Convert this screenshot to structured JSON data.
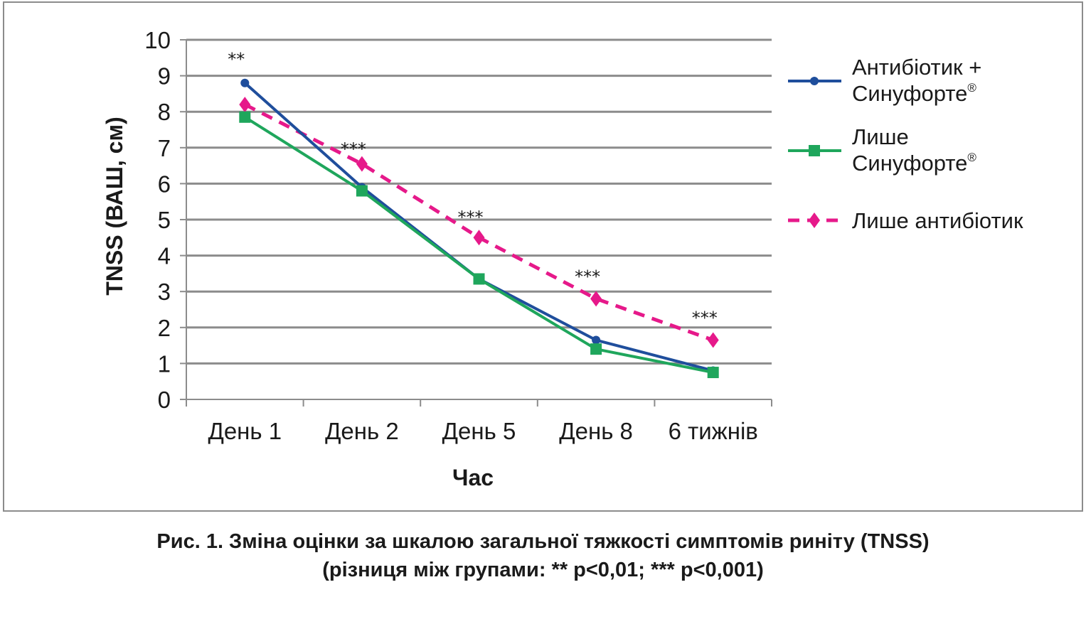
{
  "chart_data": {
    "type": "line",
    "title": "",
    "xlabel": "Час",
    "ylabel": "TNSS (ВАШ, см)",
    "ylim": [
      0,
      10
    ],
    "yticks": [
      "0",
      "1",
      "2",
      "3",
      "4",
      "5",
      "6",
      "7",
      "8",
      "9",
      "10"
    ],
    "categories": [
      "День 1",
      "День 2",
      "День 5",
      "День 8",
      "6 тижнів"
    ],
    "grid": true,
    "legend_position": "right",
    "series": [
      {
        "name": "Антибіотик + Синуфорте®",
        "legend_lines": [
          "Антибіотик +",
          "Синуфорте"
        ],
        "legend_sup": [
          "",
          "®"
        ],
        "color": "#1f4e9c",
        "marker": "circle",
        "dash": "solid",
        "values": [
          8.8,
          5.9,
          3.35,
          1.65,
          0.8
        ]
      },
      {
        "name": "Лише Синуфорте®",
        "legend_lines": [
          "Лише",
          "Синуфорте"
        ],
        "legend_sup": [
          "",
          "®"
        ],
        "color": "#1fa65c",
        "marker": "square",
        "dash": "solid",
        "values": [
          7.85,
          5.8,
          3.35,
          1.4,
          0.75
        ]
      },
      {
        "name": "Лише антибіотик",
        "legend_lines": [
          "Лише антибіотик"
        ],
        "legend_sup": [
          ""
        ],
        "color": "#e6198a",
        "marker": "diamond",
        "dash": "dashed",
        "values": [
          8.2,
          6.55,
          4.5,
          2.8,
          1.65
        ]
      }
    ],
    "annotations": [
      {
        "category": "День 1",
        "text": "**",
        "y": 9.5
      },
      {
        "category": "День 2",
        "text": "***",
        "y": 7.0
      },
      {
        "category": "День 5",
        "text": "***",
        "y": 5.1
      },
      {
        "category": "День 8",
        "text": "***",
        "y": 3.45
      },
      {
        "category": "6 тижнів",
        "text": "***",
        "y": 2.3
      }
    ]
  },
  "caption": {
    "line1": "Рис. 1. Зміна оцінки за шкалою загальної тяжкості симптомів риніту (TNSS)",
    "line2": "(різниця між групами: ** p<0,01; *** p<0,001)"
  }
}
